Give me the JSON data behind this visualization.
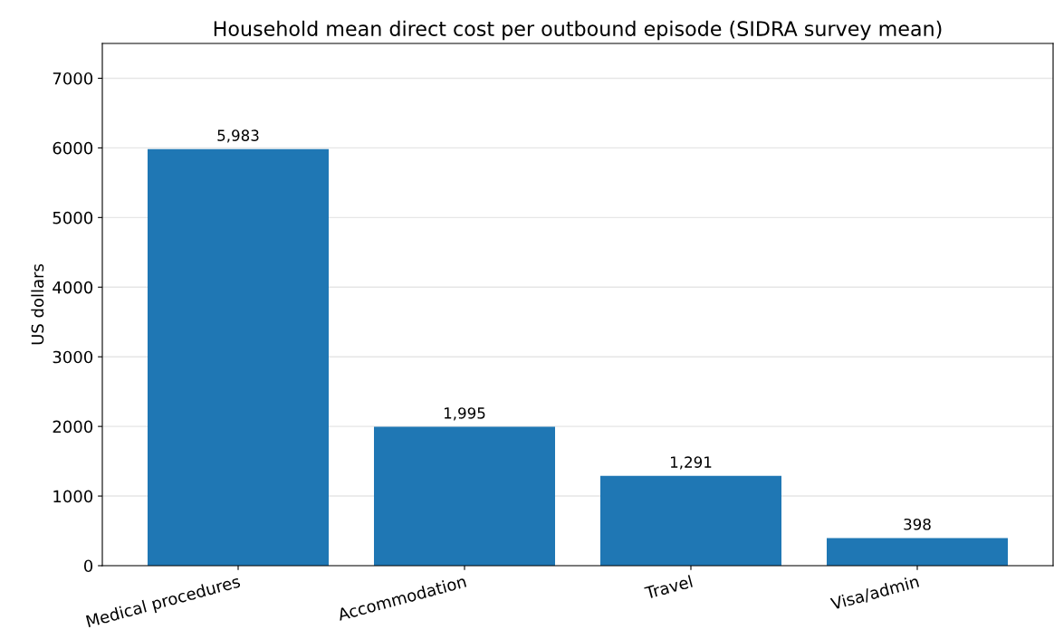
{
  "chart_data": {
    "type": "bar",
    "title": "Household mean direct cost per outbound episode (SIDRA survey mean)",
    "ylabel": "US dollars",
    "categories": [
      "Medical procedures",
      "Accommodation",
      "Travel",
      "Visa/admin"
    ],
    "values": [
      5983,
      1995,
      1291,
      398
    ],
    "value_labels": [
      "5,983",
      "1,995",
      "1,291",
      "398"
    ],
    "color": "#1f77b4",
    "ylim": [
      0,
      7500
    ],
    "yticks": [
      0,
      1000,
      2000,
      3000,
      4000,
      5000,
      6000,
      7000
    ],
    "grid": "y"
  }
}
